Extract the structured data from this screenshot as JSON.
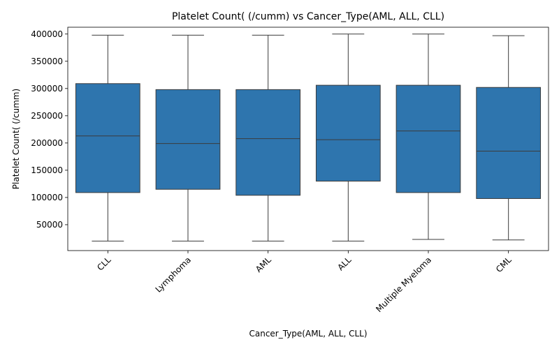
{
  "chart_data": {
    "type": "box",
    "title": "Platelet Count( (/cumm) vs Cancer_Type(AML, ALL, CLL)",
    "xlabel": "Cancer_Type(AML, ALL, CLL)",
    "ylabel": "Platelet Count( (/cumm)",
    "ylim": [
      2500,
      412500
    ],
    "yticks": [
      50000,
      100000,
      150000,
      200000,
      250000,
      300000,
      350000,
      400000
    ],
    "ytick_labels": [
      "50000",
      "100000",
      "150000",
      "200000",
      "250000",
      "300000",
      "350000",
      "400000"
    ],
    "categories": [
      "CLL",
      "Lymphoma",
      "AML",
      "ALL",
      "Multiple Myeloma",
      "CML"
    ],
    "boxes": [
      {
        "category": "CLL",
        "whisker_low": 20000,
        "q1": 109000,
        "median": 213000,
        "q3": 309000,
        "whisker_high": 398000
      },
      {
        "category": "Lymphoma",
        "whisker_low": 20000,
        "q1": 115000,
        "median": 199000,
        "q3": 298000,
        "whisker_high": 398000
      },
      {
        "category": "AML",
        "whisker_low": 20000,
        "q1": 104000,
        "median": 208000,
        "q3": 298000,
        "whisker_high": 398000
      },
      {
        "category": "ALL",
        "whisker_low": 20000,
        "q1": 130000,
        "median": 206000,
        "q3": 306000,
        "whisker_high": 400000
      },
      {
        "category": "Multiple Myeloma",
        "whisker_low": 23000,
        "q1": 109000,
        "median": 222000,
        "q3": 306000,
        "whisker_high": 400000
      },
      {
        "category": "CML",
        "whisker_low": 22000,
        "q1": 98000,
        "median": 185000,
        "q3": 302000,
        "whisker_high": 397000
      }
    ],
    "box_color": "#2e75ae",
    "line_color": "#3b3b3b",
    "grid": false,
    "legend": "none"
  }
}
